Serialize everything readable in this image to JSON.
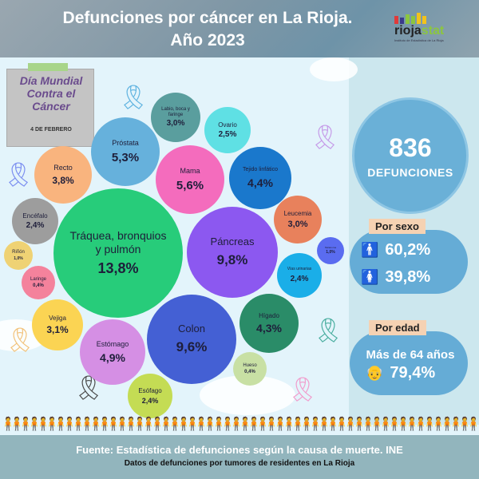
{
  "header": {
    "title_line1": "Defunciones por cáncer en La Rioja.",
    "title_line2": "Año 2023",
    "logo_brand_a": "rioja",
    "logo_brand_b": "stat",
    "logo_subtitle": "Instituto de Estadística de La Rioja",
    "logo_dot_colors": [
      "#e03a3a",
      "#3a3a8a",
      "#8cc63f",
      "#f2c21b"
    ]
  },
  "note": {
    "title": "Día Mundial Contra el Cáncer",
    "date": "4 DE FEBRERO"
  },
  "summary": {
    "total_value": "836",
    "total_label": "DEFUNCIONES",
    "by_sex_label": "Por sexo",
    "male_pct": "60,2%",
    "female_pct": "39,8%",
    "by_age_label": "Por edad",
    "age_group": "Más de 64 años",
    "age_pct": "79,4%"
  },
  "bubbles": [
    {
      "label": "Tráquea, bronquios y pulmón",
      "value": "13,8%",
      "color": "#27cc7a"
    },
    {
      "label": "Páncreas",
      "value": "9,8%",
      "color": "#8c58f0"
    },
    {
      "label": "Colon",
      "value": "9,6%",
      "color": "#4460d4"
    },
    {
      "label": "Mama",
      "value": "5,6%",
      "color": "#f46cbd"
    },
    {
      "label": "Próstata",
      "value": "5,3%",
      "color": "#66b1dc"
    },
    {
      "label": "Estómago",
      "value": "4,9%",
      "color": "#d58fe4"
    },
    {
      "label": "Tejido linfático",
      "value": "4,4%",
      "color": "#1a78cc"
    },
    {
      "label": "Hígado",
      "value": "4,3%",
      "color": "#2a8c68"
    },
    {
      "label": "Recto",
      "value": "3,8%",
      "color": "#f9b47e"
    },
    {
      "label": "Vejiga",
      "value": "3,1%",
      "color": "#fbd453"
    },
    {
      "label": "Labio, boca y faringe",
      "value": "3,0%",
      "color": "#5a9e9e"
    },
    {
      "label": "Leucemia",
      "value": "3,0%",
      "color": "#e8815c"
    },
    {
      "label": "Ovario",
      "value": "2,5%",
      "color": "#5fe0e4"
    },
    {
      "label": "Encéfalo",
      "value": "2,4%",
      "color": "#9d9d9d"
    },
    {
      "label": "Vías urinarias",
      "value": "2,4%",
      "color": "#1aaee8"
    },
    {
      "label": "Esófago",
      "value": "2,4%",
      "color": "#c4dc54"
    },
    {
      "label": "Riñón",
      "value": "1,0%",
      "color": "#efd274"
    },
    {
      "label": "Melanoma",
      "value": "1,0%",
      "color": "#5a6cf0"
    },
    {
      "label": "Laringe",
      "value": "0,4%",
      "color": "#f4829c"
    },
    {
      "label": "Hueso",
      "value": "0,4%",
      "color": "#c8e0a4"
    }
  ],
  "footer": {
    "source": "Fuente: Estadística de defunciones según la causa de muerte. INE",
    "note": "Datos de defunciones por tumores de residentes en La Rioja"
  },
  "chart_data": {
    "type": "bubble",
    "title": "Defunciones por cáncer en La Rioja. Año 2023",
    "unit": "% of cancer deaths",
    "categories": [
      "Tráquea, bronquios y pulmón",
      "Páncreas",
      "Colon",
      "Mama",
      "Próstata",
      "Estómago",
      "Tejido linfático",
      "Hígado",
      "Recto",
      "Vejiga",
      "Labio, boca y faringe",
      "Leucemia",
      "Ovario",
      "Encéfalo",
      "Vías urinarias",
      "Esófago",
      "Riñón",
      "Melanoma",
      "Laringe",
      "Hueso"
    ],
    "values": [
      13.8,
      9.8,
      9.6,
      5.6,
      5.3,
      4.9,
      4.4,
      4.3,
      3.8,
      3.1,
      3.0,
      3.0,
      2.5,
      2.4,
      2.4,
      2.4,
      1.0,
      1.0,
      0.4,
      0.4
    ],
    "total_deaths": 836,
    "by_sex": {
      "Hombres": 60.2,
      "Mujeres": 39.8
    },
    "by_age": {
      "Más de 64 años": 79.4
    },
    "source": "Fuente: Estadística de defunciones según la causa de muerte. INE"
  }
}
